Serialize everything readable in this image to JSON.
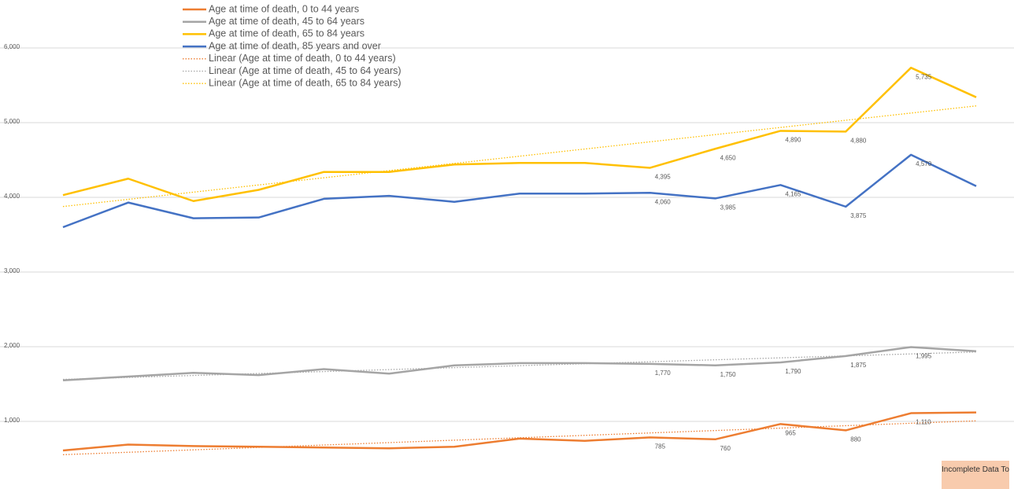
{
  "chart_data": {
    "type": "line",
    "categories": [
      null,
      null,
      null,
      null,
      null,
      null,
      null,
      null,
      null,
      null,
      null,
      null,
      null,
      null,
      null
    ],
    "series": [
      {
        "name": "Age at time of death, 0 to 44 years",
        "color": "#ED7D31",
        "values": [
          610,
          690,
          670,
          660,
          650,
          640,
          660,
          770,
          740,
          785,
          760,
          965,
          880,
          1110,
          1120
        ],
        "value_labels": [
          null,
          null,
          null,
          null,
          null,
          null,
          null,
          null,
          null,
          "785",
          "760",
          "965",
          "880",
          "1,110",
          null
        ]
      },
      {
        "name": "Age at time of death, 45 to 64 years",
        "color": "#A5A5A5",
        "values": [
          1550,
          1600,
          1650,
          1620,
          1700,
          1640,
          1750,
          1780,
          1780,
          1770,
          1750,
          1790,
          1875,
          1995,
          1940
        ],
        "value_labels": [
          null,
          null,
          null,
          null,
          null,
          null,
          null,
          null,
          null,
          "1,770",
          "1,750",
          "1,790",
          "1,875",
          "1,995",
          null
        ]
      },
      {
        "name": "Age at time of death, 65 to 84 years",
        "color": "#FFC000",
        "values": [
          4030,
          4250,
          3950,
          4100,
          4340,
          4340,
          4440,
          4460,
          4460,
          4395,
          4650,
          4890,
          4880,
          5735,
          5340
        ],
        "value_labels": [
          null,
          null,
          null,
          null,
          null,
          null,
          null,
          null,
          null,
          "4,395",
          "4,650",
          "4,890",
          "4,880",
          "5,735",
          null
        ]
      },
      {
        "name": "Age at time of death, 85 years and over",
        "color": "#4472C4",
        "values": [
          3600,
          3930,
          3720,
          3730,
          3980,
          4020,
          3940,
          4050,
          4050,
          4060,
          3985,
          4165,
          3875,
          4570,
          4150
        ],
        "value_labels": [
          null,
          null,
          null,
          null,
          null,
          null,
          null,
          null,
          null,
          "4,060",
          "3,985",
          "4,165",
          "3,875",
          "4,570",
          null
        ]
      }
    ],
    "trendlines": [
      {
        "name": "Linear (Age at time of death, 0 to 44 years)",
        "series": 0
      },
      {
        "name": "Linear (Age at time of death, 45 to 64 years)",
        "series": 1
      },
      {
        "name": "Linear (Age at time of death, 65 to 84 years)",
        "series": 2
      }
    ],
    "ylim": [
      100,
      6600
    ],
    "yticks": [
      {
        "value": 1000,
        "label": "1,000"
      },
      {
        "value": 2000,
        "label": "2,000"
      },
      {
        "value": 3000,
        "label": "3,000"
      },
      {
        "value": 4000,
        "label": "4,000"
      },
      {
        "value": 5000,
        "label": "5,000"
      },
      {
        "value": 6000,
        "label": "6,000"
      }
    ],
    "grid": true,
    "annotation": "Incomplete Data To"
  }
}
